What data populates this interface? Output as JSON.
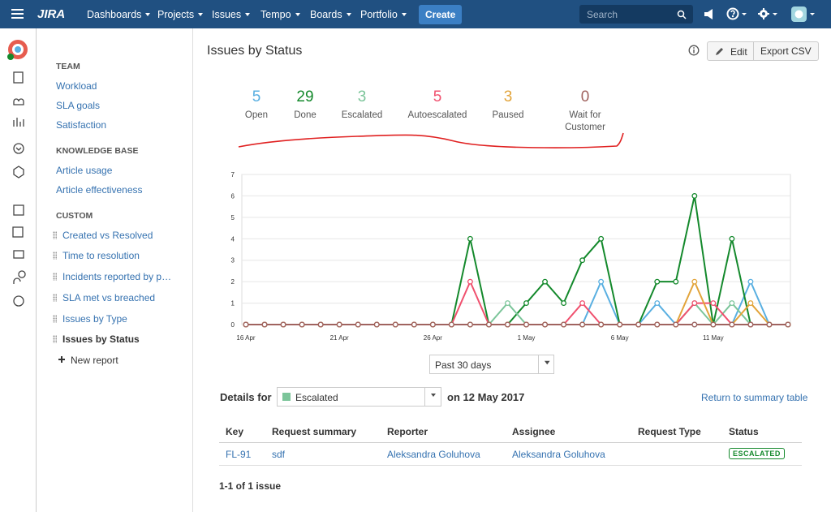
{
  "nav": {
    "logo": "JIRA",
    "menu": [
      "Dashboards",
      "Projects",
      "Issues",
      "Tempo",
      "Boards",
      "Portfolio"
    ],
    "create": "Create",
    "search_placeholder": "Search"
  },
  "sidebar": {
    "sections": [
      {
        "heading": "TEAM",
        "items": [
          "Workload",
          "SLA goals",
          "Satisfaction"
        ]
      },
      {
        "heading": "KNOWLEDGE BASE",
        "items": [
          "Article usage",
          "Article effectiveness"
        ]
      },
      {
        "heading": "CUSTOM",
        "items": [
          "Created vs Resolved",
          "Time to resolution",
          "Incidents reported by p…",
          "SLA met vs breached",
          "Issues by Type",
          "Issues by Status"
        ]
      }
    ],
    "new_report": "New report"
  },
  "header": {
    "title": "Issues by Status",
    "edit": "Edit",
    "export": "Export CSV"
  },
  "summary": [
    {
      "count": 5,
      "label": "Open"
    },
    {
      "count": 29,
      "label": "Done"
    },
    {
      "count": 3,
      "label": "Escalated"
    },
    {
      "count": 5,
      "label": "Autoescalated"
    },
    {
      "count": 3,
      "label": "Paused"
    },
    {
      "count": 0,
      "label": "Wait for Customer"
    }
  ],
  "chart_data": {
    "type": "line",
    "categories": [
      "16 Apr",
      null,
      null,
      null,
      null,
      "21 Apr",
      null,
      null,
      null,
      null,
      "26 Apr",
      null,
      null,
      null,
      null,
      "1 May",
      null,
      null,
      null,
      null,
      "6 May",
      null,
      null,
      null,
      null,
      "11 May",
      null,
      null,
      null,
      null
    ],
    "series": [
      {
        "name": "Open",
        "color": "#59afe1",
        "values": [
          0,
          0,
          0,
          0,
          0,
          0,
          0,
          0,
          0,
          0,
          0,
          0,
          0,
          0,
          0,
          0,
          0,
          0,
          0,
          2,
          0,
          0,
          1,
          0,
          0,
          0,
          0,
          2,
          0,
          0
        ]
      },
      {
        "name": "Done",
        "color": "#14892c",
        "values": [
          0,
          0,
          0,
          0,
          0,
          0,
          0,
          0,
          0,
          0,
          0,
          0,
          4,
          0,
          0,
          1,
          2,
          1,
          3,
          4,
          0,
          0,
          2,
          2,
          6,
          0,
          4,
          0,
          0,
          0
        ]
      },
      {
        "name": "Escalated",
        "color": "#7cc59a",
        "values": [
          0,
          0,
          0,
          0,
          0,
          0,
          0,
          0,
          0,
          0,
          0,
          0,
          0,
          0,
          1,
          0,
          0,
          0,
          0,
          0,
          0,
          0,
          0,
          0,
          1,
          0,
          1,
          0,
          0,
          0
        ]
      },
      {
        "name": "Autoescalated",
        "color": "#f0506e",
        "values": [
          0,
          0,
          0,
          0,
          0,
          0,
          0,
          0,
          0,
          0,
          0,
          0,
          2,
          0,
          0,
          0,
          0,
          0,
          1,
          0,
          0,
          0,
          0,
          0,
          1,
          1,
          0,
          0,
          0,
          0
        ]
      },
      {
        "name": "Paused",
        "color": "#e2a43a",
        "values": [
          0,
          0,
          0,
          0,
          0,
          0,
          0,
          0,
          0,
          0,
          0,
          0,
          0,
          0,
          0,
          0,
          0,
          0,
          0,
          0,
          0,
          0,
          0,
          0,
          2,
          0,
          0,
          1,
          0,
          0
        ]
      },
      {
        "name": "Wait for Customer",
        "color": "#a0635f",
        "values": [
          0,
          0,
          0,
          0,
          0,
          0,
          0,
          0,
          0,
          0,
          0,
          0,
          0,
          0,
          0,
          0,
          0,
          0,
          0,
          0,
          0,
          0,
          0,
          0,
          0,
          0,
          0,
          0,
          0,
          0
        ]
      }
    ],
    "ylim": [
      0,
      7
    ],
    "yticks": [
      0,
      1,
      2,
      3,
      4,
      5,
      6,
      7
    ],
    "grid": true
  },
  "range_select": "Past 30 days",
  "details": {
    "label": "Details for",
    "filter": "Escalated",
    "date": "on 12 May 2017",
    "return_link": "Return to summary table",
    "columns": [
      "Key",
      "Request summary",
      "Reporter",
      "Assignee",
      "Request Type",
      "Status"
    ],
    "rows": [
      {
        "key": "FL-91",
        "summary": "sdf",
        "reporter": "Aleksandra Goluhova",
        "assignee": "Aleksandra Goluhova",
        "status": "ESCALATED"
      }
    ],
    "count": "1-1 of 1 issue"
  }
}
